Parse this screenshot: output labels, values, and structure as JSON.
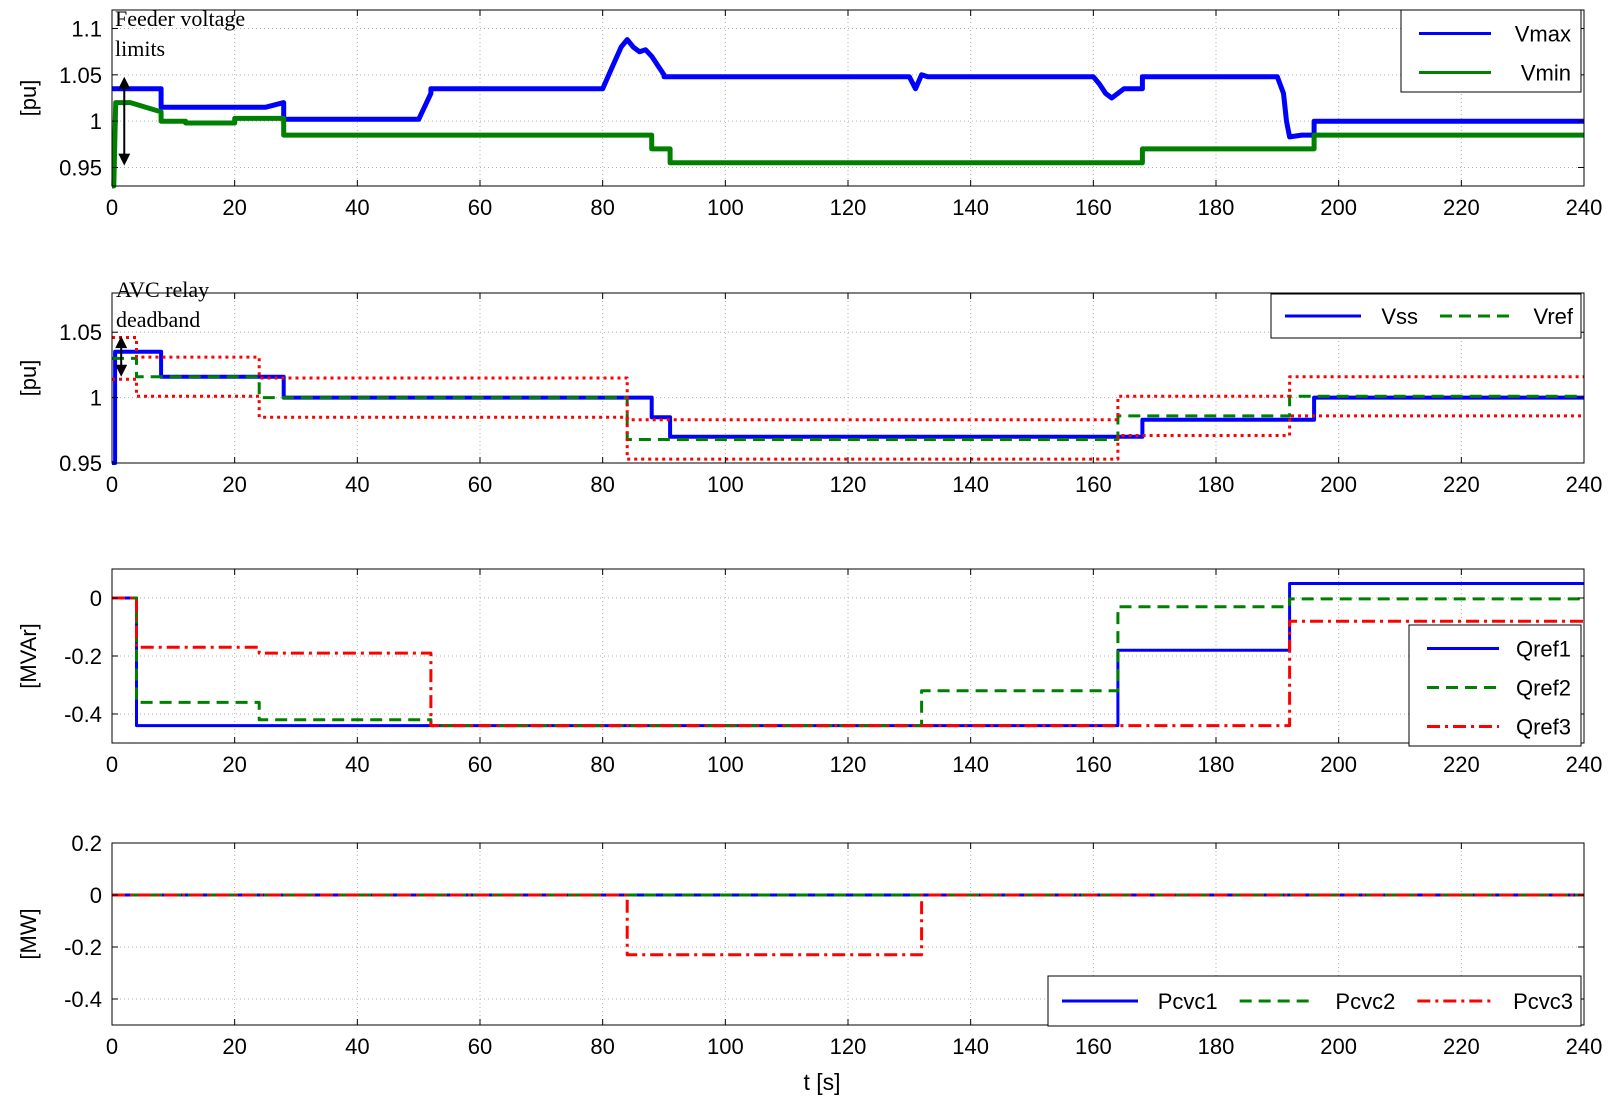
{
  "figure": {
    "xlabel": "t [s]"
  },
  "chart_data": [
    {
      "type": "line",
      "ylabel": "[pu]",
      "xlim": [
        0,
        240
      ],
      "ylim": [
        0.93,
        1.12
      ],
      "xticks": [
        0,
        20,
        40,
        60,
        80,
        100,
        120,
        140,
        160,
        180,
        200,
        220,
        240
      ],
      "yticks": [
        0.95,
        1,
        1.05,
        1.1
      ],
      "ytick_labels": [
        "0.95",
        "1",
        "1.05",
        "1.1"
      ],
      "grid": true,
      "legend_position": "top-right",
      "annotation": {
        "lines": [
          "Feeder voltage",
          "limits"
        ],
        "arrow_x": 2,
        "arrow_y": [
          0.952,
          1.048
        ]
      },
      "series": [
        {
          "name": "Vmax",
          "color": "#0000ff",
          "style": "solid",
          "width": 5,
          "x": [
            0,
            0.2,
            8,
            8,
            25,
            28,
            28,
            50,
            52,
            52,
            80,
            81,
            83,
            84,
            85,
            86,
            87,
            88,
            89,
            90,
            90,
            130,
            131,
            132,
            133,
            160,
            161,
            162,
            163,
            164,
            165,
            165,
            167,
            168,
            168,
            190,
            191,
            191.5,
            192,
            194,
            196,
            196,
            240
          ],
          "y": [
            1.035,
            1.035,
            1.035,
            1.015,
            1.015,
            1.02,
            1.002,
            1.002,
            1.03,
            1.035,
            1.035,
            1.05,
            1.08,
            1.088,
            1.08,
            1.075,
            1.077,
            1.07,
            1.06,
            1.05,
            1.048,
            1.048,
            1.035,
            1.05,
            1.048,
            1.048,
            1.04,
            1.03,
            1.025,
            1.03,
            1.035,
            1.035,
            1.035,
            1.035,
            1.048,
            1.048,
            1.03,
            1.0,
            0.983,
            0.985,
            0.985,
            1.0,
            1.0
          ]
        },
        {
          "name": "Vmin",
          "color": "#008000",
          "style": "solid",
          "width": 5,
          "x": [
            0,
            0.3,
            0.6,
            3,
            8,
            8,
            12,
            12,
            20,
            20,
            28,
            28,
            88,
            88,
            91,
            91,
            168,
            168,
            196,
            196,
            240
          ],
          "y": [
            0.93,
            0.93,
            1.02,
            1.02,
            1.01,
            1.0,
            1.0,
            0.998,
            0.998,
            1.003,
            1.003,
            0.985,
            0.985,
            0.97,
            0.97,
            0.955,
            0.955,
            0.97,
            0.97,
            0.985,
            0.985
          ]
        }
      ]
    },
    {
      "type": "line",
      "ylabel": "[pu]",
      "xlim": [
        0,
        240
      ],
      "ylim": [
        0.95,
        1.08
      ],
      "xticks": [
        0,
        20,
        40,
        60,
        80,
        100,
        120,
        140,
        160,
        180,
        200,
        220,
        240
      ],
      "yticks": [
        0.95,
        1,
        1.05
      ],
      "ytick_labels": [
        "0.95",
        "1",
        "1.05"
      ],
      "grid": true,
      "legend_position": "top-right",
      "annotation": {
        "lines": [
          "AVC relay",
          "deadband"
        ],
        "arrow_x": 1.5,
        "arrow_y": [
          1.016,
          1.047
        ]
      },
      "series": [
        {
          "name": "Vss",
          "color": "#0000ff",
          "style": "solid",
          "width": 4,
          "x": [
            0,
            0.5,
            0.5,
            8,
            8,
            28,
            28,
            88,
            88,
            91,
            91,
            168,
            168,
            196,
            196,
            240
          ],
          "y": [
            0.95,
            0.95,
            1.035,
            1.035,
            1.016,
            1.016,
            1.0,
            1.0,
            0.985,
            0.985,
            0.97,
            0.97,
            0.983,
            0.983,
            1.0,
            1.0
          ]
        },
        {
          "name": "Vref",
          "color": "#008000",
          "style": "dashed",
          "width": 3,
          "x": [
            0,
            4,
            4,
            24,
            24,
            84,
            84,
            164,
            164,
            192,
            192,
            240
          ],
          "y": [
            1.03,
            1.03,
            1.016,
            1.016,
            1.0,
            1.0,
            0.968,
            0.968,
            0.986,
            0.986,
            1.001,
            1.001
          ]
        },
        {
          "color": "#ff0000",
          "style": "dotted",
          "width": 3,
          "x": [
            0,
            4,
            4,
            24,
            24,
            84,
            84,
            164,
            164,
            192,
            192,
            240
          ],
          "y": [
            1.046,
            1.046,
            1.031,
            1.031,
            1.015,
            1.015,
            0.983,
            0.983,
            1.001,
            1.001,
            1.016,
            1.016
          ]
        },
        {
          "color": "#ff0000",
          "style": "dotted",
          "width": 3,
          "x": [
            0,
            4,
            4,
            24,
            24,
            84,
            84,
            164,
            164,
            192,
            192,
            240
          ],
          "y": [
            1.014,
            1.014,
            1.001,
            1.001,
            0.985,
            0.985,
            0.953,
            0.953,
            0.971,
            0.971,
            0.986,
            0.986
          ]
        }
      ]
    },
    {
      "type": "line",
      "ylabel": "[MVAr]",
      "xlim": [
        0,
        240
      ],
      "ylim": [
        -0.5,
        0.1
      ],
      "xticks": [
        0,
        20,
        40,
        60,
        80,
        100,
        120,
        140,
        160,
        180,
        200,
        220,
        240
      ],
      "yticks": [
        -0.4,
        -0.2,
        0
      ],
      "ytick_labels": [
        "-0.4",
        "-0.2",
        "0"
      ],
      "grid": true,
      "legend_position": "right",
      "series": [
        {
          "name": "Qref1",
          "color": "#0000ff",
          "style": "solid",
          "width": 3,
          "x": [
            0,
            4,
            4,
            164,
            164,
            192,
            192,
            240
          ],
          "y": [
            0,
            0,
            -0.44,
            -0.44,
            -0.18,
            -0.18,
            0.05,
            0.05
          ]
        },
        {
          "name": "Qref2",
          "color": "#008000",
          "style": "dashed",
          "width": 3,
          "x": [
            0,
            4,
            4,
            24,
            24,
            52,
            52,
            132,
            132,
            164,
            164,
            192,
            192,
            240
          ],
          "y": [
            0,
            0,
            -0.36,
            -0.36,
            -0.42,
            -0.42,
            -0.44,
            -0.44,
            -0.32,
            -0.32,
            -0.03,
            -0.03,
            -0.003,
            -0.003
          ]
        },
        {
          "name": "Qref3",
          "color": "#ff0000",
          "style": "dashdot",
          "width": 3,
          "x": [
            0,
            4,
            4,
            24,
            24,
            52,
            52,
            192,
            192,
            240
          ],
          "y": [
            0,
            0,
            -0.17,
            -0.17,
            -0.19,
            -0.19,
            -0.44,
            -0.44,
            -0.08,
            -0.08
          ]
        }
      ]
    },
    {
      "type": "line",
      "ylabel": "[MW]",
      "xlabel": "t [s]",
      "xlim": [
        0,
        240
      ],
      "ylim": [
        -0.5,
        0.2
      ],
      "xticks": [
        0,
        20,
        40,
        60,
        80,
        100,
        120,
        140,
        160,
        180,
        200,
        220,
        240
      ],
      "yticks": [
        -0.4,
        -0.2,
        0,
        0.2
      ],
      "ytick_labels": [
        "-0.4",
        "-0.2",
        "0",
        "0.2"
      ],
      "grid": true,
      "legend_position": "bottom-right",
      "series": [
        {
          "name": "Pcvc1",
          "color": "#0000ff",
          "style": "solid",
          "width": 3,
          "x": [
            0,
            240
          ],
          "y": [
            0,
            0
          ]
        },
        {
          "name": "Pcvc2",
          "color": "#008000",
          "style": "dashed",
          "width": 3,
          "x": [
            0,
            240
          ],
          "y": [
            0,
            0
          ]
        },
        {
          "name": "Pcvc3",
          "color": "#ff0000",
          "style": "dashdot",
          "width": 3,
          "x": [
            0,
            84,
            84,
            132,
            132,
            240
          ],
          "y": [
            0,
            0,
            -0.23,
            -0.23,
            0,
            0
          ]
        }
      ]
    }
  ]
}
